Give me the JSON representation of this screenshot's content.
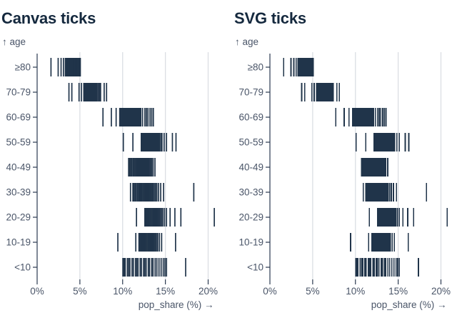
{
  "page": {
    "background": "#ffffff"
  },
  "chart_data": {
    "type": "barcode",
    "panels": [
      {
        "title": "Canvas ticks",
        "renderer": "canvas"
      },
      {
        "title": "SVG ticks",
        "renderer": "svg"
      }
    ],
    "ylabel": "↑ age",
    "xlabel": "pop_share (%) →",
    "categories": [
      "≥80",
      "70-79",
      "60-69",
      "50-59",
      "40-49",
      "30-39",
      "20-29",
      "10-19",
      "<10"
    ],
    "x_tick_labels": [
      "0%",
      "5%",
      "10%",
      "15%",
      "20%"
    ],
    "x_tick_values": [
      0,
      5,
      10,
      15,
      20
    ],
    "xlim": [
      0,
      21
    ],
    "grid": true,
    "colors": {
      "tick": "#20344a",
      "title": "#15293e",
      "axis_text": "#4a5568",
      "grid": "#dbdee3",
      "axis_line": "#2b3a50"
    },
    "values": [
      [
        1.62,
        2.46,
        2.8,
        3.08,
        3.3,
        3.36,
        3.42,
        3.48,
        3.54,
        3.6,
        3.66,
        3.72,
        3.78,
        3.84,
        3.9,
        3.96,
        4.02,
        4.08,
        4.14,
        4.2,
        4.26,
        4.32,
        4.38,
        4.44,
        4.5,
        4.56,
        4.62,
        4.68,
        4.74,
        4.8,
        4.86,
        4.95,
        5.05
      ],
      [
        3.72,
        4.06,
        4.9,
        5.18,
        5.46,
        5.52,
        5.6,
        5.68,
        5.76,
        5.84,
        5.92,
        6.0,
        6.08,
        6.16,
        6.24,
        6.32,
        6.4,
        6.48,
        6.56,
        6.64,
        6.72,
        6.8,
        6.88,
        6.96,
        7.0,
        7.14,
        7.28,
        7.42,
        7.84,
        8.12
      ],
      [
        7.7,
        8.68,
        9.24,
        9.66,
        9.78,
        9.9,
        10.0,
        10.1,
        10.2,
        10.3,
        10.4,
        10.5,
        10.6,
        10.7,
        10.8,
        10.9,
        11.0,
        11.1,
        11.2,
        11.3,
        11.4,
        11.5,
        11.6,
        11.7,
        11.8,
        11.9,
        12.0,
        12.12,
        12.33,
        12.6,
        12.78,
        12.96,
        13.2,
        13.4,
        13.59
      ],
      [
        10.08,
        11.2,
        12.18,
        12.3,
        12.4,
        12.5,
        12.6,
        12.7,
        12.8,
        12.9,
        13.0,
        13.1,
        13.2,
        13.3,
        13.4,
        13.5,
        13.6,
        13.7,
        13.8,
        13.9,
        14.0,
        14.1,
        14.2,
        14.3,
        14.45,
        14.6,
        14.85,
        15.13,
        15.82,
        16.24
      ],
      [
        10.7,
        10.82,
        10.94,
        11.06,
        11.2,
        11.32,
        11.44,
        11.56,
        11.68,
        11.8,
        11.9,
        12.0,
        12.1,
        12.2,
        12.3,
        12.4,
        12.5,
        12.6,
        12.7,
        12.8,
        12.9,
        13.0,
        13.12,
        13.26,
        13.4,
        13.56,
        13.78
      ],
      [
        10.92,
        11.2,
        11.32,
        11.46,
        11.6,
        11.74,
        11.88,
        12.0,
        12.12,
        12.24,
        12.36,
        12.48,
        12.6,
        12.72,
        12.84,
        12.96,
        13.08,
        13.2,
        13.32,
        13.44,
        13.56,
        13.7,
        13.85,
        14.0,
        14.2,
        14.45,
        14.79,
        18.32
      ],
      [
        11.62,
        12.6,
        12.72,
        12.84,
        12.96,
        13.08,
        13.2,
        13.32,
        13.44,
        13.56,
        13.68,
        13.8,
        13.92,
        14.04,
        14.16,
        14.28,
        14.4,
        14.55,
        14.7,
        14.9,
        15.13,
        15.55,
        16.11,
        16.81,
        20.72
      ],
      [
        9.44,
        11.54,
        11.91,
        12.02,
        12.14,
        12.26,
        12.38,
        12.5,
        12.62,
        12.74,
        12.86,
        12.98,
        13.1,
        13.22,
        13.34,
        13.46,
        13.58,
        13.7,
        13.82,
        13.95,
        14.1,
        14.3,
        14.56,
        16.19
      ],
      [
        10.03,
        10.16,
        10.3,
        10.55,
        10.7,
        10.85,
        11.1,
        11.25,
        11.5,
        11.65,
        11.8,
        12.05,
        12.2,
        12.45,
        12.6,
        12.75,
        13.0,
        13.15,
        13.4,
        13.55,
        13.8,
        14.0,
        14.25,
        14.5,
        14.75,
        14.95,
        15.13,
        17.37
      ]
    ]
  }
}
